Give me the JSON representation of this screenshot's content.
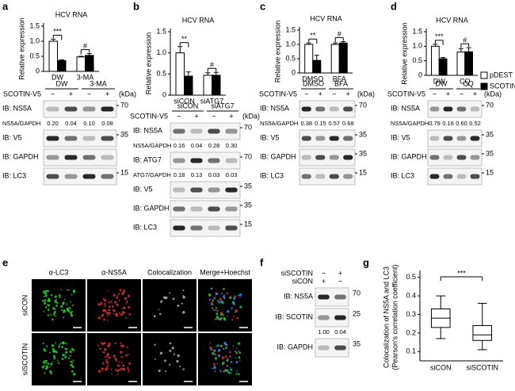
{
  "chart_data": [
    {
      "label": "a",
      "type": "bar",
      "title": "HCV RNA",
      "y_label": "Relative expression",
      "categories": [
        "DW",
        "3-MA"
      ],
      "ylim": [
        0,
        1.5
      ],
      "yticks": [
        0,
        0.5,
        {
          "value": 1,
          "label": "1.0"
        },
        1.5
      ],
      "series": [
        {
          "color": "#ffffff",
          "values": [
            1.0,
            0.48
          ],
          "errors": [
            0.07,
            0.02
          ]
        },
        {
          "color": "#000000",
          "values": [
            0.36,
            0.53
          ],
          "errors": [
            0.02,
            0.06
          ]
        }
      ],
      "significance": [
        "***",
        "#"
      ]
    },
    {
      "label": "b",
      "type": "bar",
      "title": "HCV RNA",
      "y_label": "Relative expression",
      "categories": [
        "siCON",
        "siATG7"
      ],
      "ylim": [
        0,
        1.5
      ],
      "yticks": [
        0,
        0.5,
        {
          "value": 1,
          "label": "1.0"
        },
        1.5
      ],
      "series": [
        {
          "color": "#ffffff",
          "values": [
            1.0,
            0.47
          ],
          "errors": [
            0.15,
            0.06
          ]
        },
        {
          "color": "#000000",
          "values": [
            0.45,
            0.47
          ],
          "errors": [
            0.1,
            0.07
          ]
        }
      ],
      "significance": [
        "**",
        "#"
      ]
    },
    {
      "label": "c",
      "type": "bar",
      "title": "HCV RNA",
      "y_label": "Relative expression",
      "categories": [
        "DMSO",
        "BFA"
      ],
      "ylim": [
        0,
        1.5
      ],
      "yticks": [
        0,
        0.5,
        {
          "value": 1,
          "label": "1.0"
        },
        1.5
      ],
      "series": [
        {
          "color": "#ffffff",
          "values": [
            1.0,
            1.0
          ],
          "errors": [
            0.05,
            0.05
          ]
        },
        {
          "color": "#000000",
          "values": [
            0.44,
            1.05
          ],
          "errors": [
            0.18,
            0.05
          ]
        }
      ],
      "significance": [
        "**",
        "#"
      ]
    },
    {
      "label": "d",
      "type": "bar",
      "title": "HCV RNA",
      "y_label": "Relative expression",
      "categories": [
        "DW",
        "CQ"
      ],
      "ylim": [
        0,
        1.5
      ],
      "yticks": [
        0,
        0.5,
        {
          "value": 1,
          "label": "1.0"
        },
        1.5
      ],
      "series": [
        {
          "name": "pDEST",
          "color": "#ffffff",
          "values": [
            1.0,
            0.8
          ],
          "errors": [
            0.07,
            0.12
          ]
        },
        {
          "name": "SCOTIN-V5",
          "color": "#000000",
          "values": [
            0.57,
            0.81
          ],
          "errors": [
            0.04,
            0.14
          ]
        }
      ],
      "significance": [
        "***",
        "#"
      ],
      "legend": "right"
    },
    {
      "label": "g",
      "type": "box",
      "y_label": [
        "Colocalization of NS5A and LC3",
        "(Pearson's correlation coefficient)"
      ],
      "categories": [
        "siCON",
        "siSCOTIN"
      ],
      "ylim": [
        0.05,
        0.52
      ],
      "yticks": [
        0.1,
        0.2,
        0.3,
        0.4,
        0.5
      ],
      "boxes": [
        {
          "min": 0.17,
          "q1": 0.23,
          "median": 0.28,
          "q3": 0.33,
          "max": 0.4
        },
        {
          "min": 0.11,
          "q1": 0.16,
          "median": 0.19,
          "q3": 0.24,
          "max": 0.36
        }
      ],
      "significance": "***"
    }
  ],
  "blots": [
    {
      "groups": [
        "DW",
        "3-MA"
      ],
      "treatment": "SCOTIN-V5",
      "signs": [
        "−",
        "+",
        "−",
        "+"
      ],
      "unit": "(kDa)",
      "rows": [
        {
          "label": "IB: NS5A",
          "marker": "70"
        },
        {
          "label": "NS5A/GAPDH",
          "values": [
            "0.20",
            "0.04",
            "0.10",
            "0.08"
          ]
        },
        {
          "label": "IB: V5",
          "marker": "35"
        },
        {
          "label": "IB: GAPDH"
        },
        {
          "label": "IB: LC3",
          "marker": "15"
        }
      ]
    },
    {
      "groups": [
        "siCON",
        "siATG7"
      ],
      "treatment": "SCOTIN-V5",
      "signs": [
        "−",
        "+",
        "−",
        "+"
      ],
      "unit": "(kDa)",
      "rows": [
        {
          "label": "IB: NS5A",
          "marker": "70"
        },
        {
          "label": "NS5A/GAPDH",
          "values": [
            "0.16",
            "0.04",
            "0.28",
            "0.30"
          ]
        },
        {
          "label": "IB: ATG7",
          "marker": "70"
        },
        {
          "label": "ATG7/GAPDH",
          "values": [
            "0.18",
            "0.13",
            "0.03",
            "0.03"
          ]
        },
        {
          "label": "IB: V5",
          "marker": "35"
        },
        {
          "label": "IB: GAPDH",
          "marker": "35"
        },
        {
          "label": "IB: LC3",
          "marker": "15"
        }
      ]
    },
    {
      "groups": [
        "DMSO",
        "BFA"
      ],
      "treatment": "SCOTIN-V5",
      "signs": [
        "−",
        "+",
        "−",
        "+"
      ],
      "unit": "(kDa)",
      "rows": [
        {
          "label": "IB: NS5A",
          "marker": "70"
        },
        {
          "label": "NS5A/GAPDH",
          "values": [
            "0.38",
            "0.15",
            "0.57",
            "0.68"
          ]
        },
        {
          "label": "IB: V5",
          "marker": "35"
        },
        {
          "label": "IB: GAPDH",
          "marker": "35"
        },
        {
          "label": "IB: LC3",
          "marker": "15"
        }
      ]
    },
    {
      "groups": [
        "DW",
        "CQ"
      ],
      "treatment": "SCOTIN-V5",
      "signs": [
        "−",
        "+",
        "−",
        "+"
      ],
      "unit": "(kDa)",
      "rows": [
        {
          "label": "IB: NS5A",
          "marker": "70"
        },
        {
          "label": "NS5A/GAPDH",
          "values": [
            "0.79",
            "0.16",
            "0.60",
            "0.52"
          ]
        },
        {
          "label": "IB: V5",
          "marker": "35"
        },
        {
          "label": "IB: GAPDH",
          "marker": "35"
        },
        {
          "label": "IB: LC3",
          "marker": "15"
        }
      ]
    }
  ],
  "microscopy": {
    "label": "e",
    "columns": [
      "α-LC3",
      "α-NS5A",
      "Colocalization",
      "Merge+Hoechst"
    ],
    "rows": [
      "siCON",
      "siSCOTIN"
    ]
  },
  "blot_f": {
    "label": "f",
    "conditions": [
      {
        "name": "siSCOTIN",
        "signs": [
          "−",
          "+"
        ]
      },
      {
        "name": "siCON",
        "signs": [
          "+",
          "−"
        ]
      }
    ],
    "rows": [
      {
        "label": "IB: NS5A",
        "marker": "70"
      },
      {
        "label": "IB: SCOTIN",
        "marker": "25"
      },
      {
        "values": [
          "1.00",
          "0.04"
        ]
      },
      {
        "label": "IB: GAPDH",
        "marker": "35"
      }
    ]
  }
}
